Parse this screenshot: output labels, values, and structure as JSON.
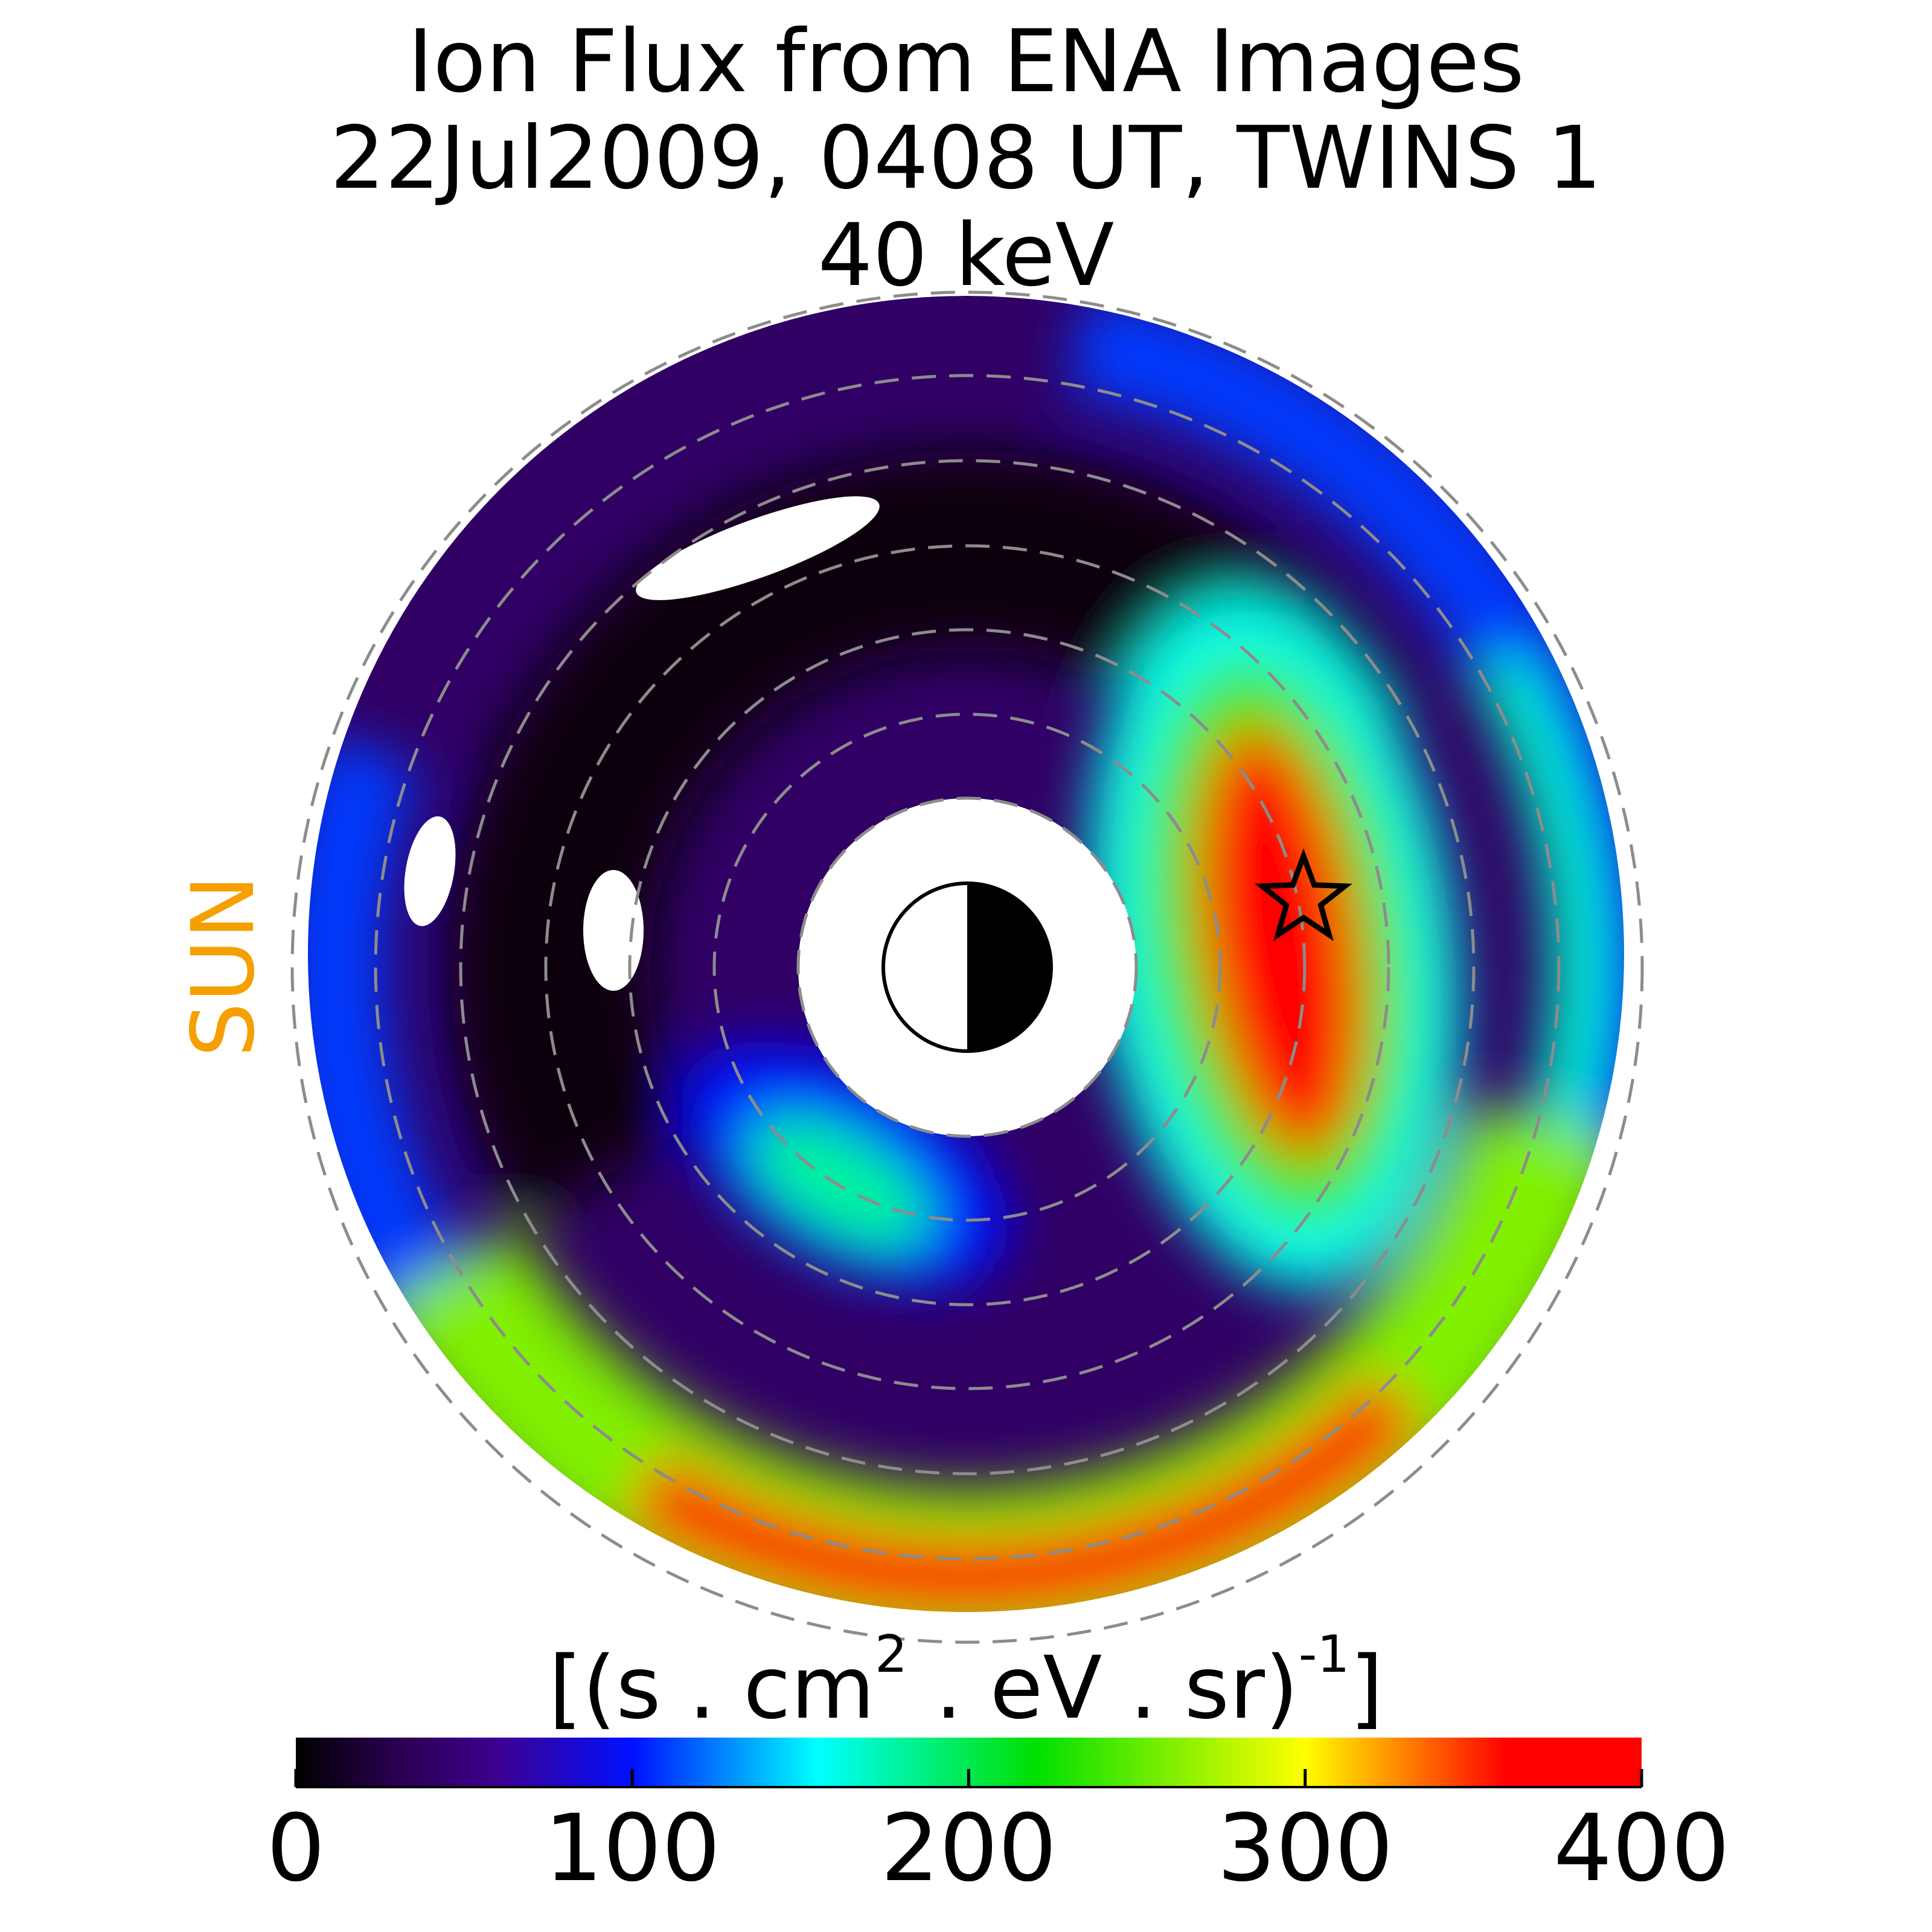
{
  "chart_data": {
    "type": "polar_heatmap",
    "title": [
      "Ion Flux from  ENA Images",
      "22Jul2009, 0408 UT,  TWINS 1",
      "40 keV"
    ],
    "sun_label": "SUN",
    "sun_color": "#f5a000",
    "colorbar_label": [
      "[(s . cm",
      "2",
      " . eV . sr)",
      "-1",
      "]"
    ],
    "clim": [
      0,
      400
    ],
    "cticks": [
      0,
      100,
      200,
      300,
      400
    ],
    "colormap": [
      {
        "value": 0,
        "color": "#000000"
      },
      {
        "value": 30,
        "color": "#2a0050"
      },
      {
        "value": 60,
        "color": "#3d0090"
      },
      {
        "value": 100,
        "color": "#0010ff"
      },
      {
        "value": 155,
        "color": "#00ffff"
      },
      {
        "value": 220,
        "color": "#00e000"
      },
      {
        "value": 300,
        "color": "#ffff00"
      },
      {
        "value": 330,
        "color": "#ff8000"
      },
      {
        "value": 360,
        "color": "#ff0000"
      },
      {
        "value": 400,
        "color": "#ff0000"
      }
    ],
    "background_value": 40,
    "region_values": [
      110,
      170,
      260,
      400,
      5,
      160,
      240,
      400,
      100,
      180
    ]
  }
}
